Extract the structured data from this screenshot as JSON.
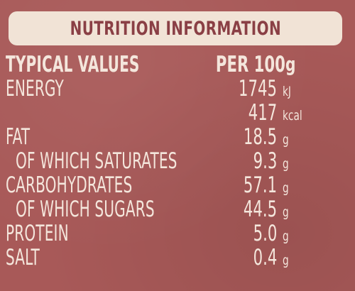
{
  "title": "NUTRITION INFORMATION",
  "header": {
    "name": "TYPICAL VALUES",
    "value": "PER 100",
    "unit": "g"
  },
  "rows": [
    {
      "name": "ENERGY",
      "value": "1745",
      "unit": "kJ"
    },
    {
      "name": "",
      "value": "417",
      "unit": "kcal"
    },
    {
      "name": "FAT",
      "value": "18.5",
      "unit": "g"
    },
    {
      "name": "OF WHICH SATURATES",
      "value": "9.3",
      "unit": "g"
    },
    {
      "name": "CARBOHYDRATES",
      "value": "57.1",
      "unit": "g"
    },
    {
      "name": "OF WHICH SUGARS",
      "value": "44.5",
      "unit": "g"
    },
    {
      "name": "PROTEIN",
      "value": "5.0",
      "unit": "g"
    },
    {
      "name": "SALT",
      "value": "0.4",
      "unit": "g"
    }
  ]
}
